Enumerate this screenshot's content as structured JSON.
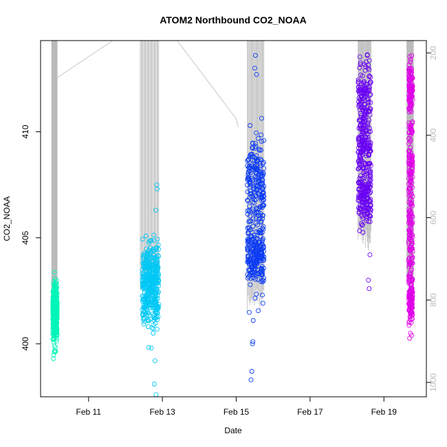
{
  "chart_data": {
    "type": "scatter",
    "title": "ATOM2 Northbound CO2_NOAA",
    "xlabel": "Date",
    "ylabel": "CO2_NOAA",
    "x_unit": "days since Feb 10 00:00",
    "xlim": [
      -0.3,
      10.15
    ],
    "ylim": [
      397.5,
      414.3
    ],
    "x_ticks": [
      {
        "value": 1,
        "label": "Feb 11"
      },
      {
        "value": 3,
        "label": "Feb 13"
      },
      {
        "value": 5,
        "label": "Feb 15"
      },
      {
        "value": 7,
        "label": "Feb 17"
      },
      {
        "value": 9,
        "label": "Feb 19"
      }
    ],
    "y_ticks": [
      {
        "value": 400,
        "label": "400"
      },
      {
        "value": 405,
        "label": "405"
      },
      {
        "value": 410,
        "label": "410"
      }
    ],
    "right_axis": {
      "label_color": "#bbbbbb",
      "ylim": [
        1035,
        170
      ],
      "ticks": [
        {
          "value": 200,
          "label": "200"
        },
        {
          "value": 400,
          "label": "400"
        },
        {
          "value": 600,
          "label": "600"
        },
        {
          "value": 800,
          "label": "800"
        },
        {
          "value": 1000,
          "label": "1000"
        }
      ]
    },
    "grid": false,
    "series": [
      {
        "color": "#00f5b8",
        "x_start": 0.03,
        "x_end": 0.15,
        "cluster_y": [
          [
            401.5,
            1.2
          ]
        ],
        "outliers": [
          [
            0.05,
            399.3
          ],
          [
            0.08,
            399.6
          ],
          [
            0.1,
            400.3
          ],
          [
            0.12,
            402.6
          ]
        ]
      },
      {
        "color": "#00c8f5",
        "x_start": 2.45,
        "x_end": 2.9,
        "cluster_y": [
          [
            402.2,
            1.4
          ],
          [
            403.5,
            1.3
          ]
        ],
        "outliers": [
          [
            2.78,
            398.1
          ],
          [
            2.83,
            397.6
          ],
          [
            2.8,
            399.2
          ],
          [
            2.85,
            407.5
          ],
          [
            2.86,
            407.3
          ],
          [
            2.82,
            406.3
          ],
          [
            2.7,
            399.8
          ],
          [
            2.75,
            400.5
          ]
        ]
      },
      {
        "color": "#0b3bf5",
        "x_start": 5.3,
        "x_end": 5.75,
        "cluster_y": [
          [
            405.5,
            3.0
          ],
          [
            408.0,
            2.0
          ],
          [
            404.0,
            1.2
          ]
        ],
        "outliers": [
          [
            5.4,
            398.3
          ],
          [
            5.42,
            398.7
          ],
          [
            5.44,
            400.0
          ],
          [
            5.45,
            400.1
          ],
          [
            5.46,
            401.1
          ],
          [
            5.5,
            413.0
          ],
          [
            5.52,
            413.6
          ],
          [
            5.55,
            412.7
          ]
        ]
      },
      {
        "color": "#6a00f5",
        "x_start": 8.3,
        "x_end": 8.65,
        "cluster_y": [
          [
            406.8,
            1.2
          ],
          [
            409.0,
            1.5
          ],
          [
            411.5,
            1.8
          ]
        ],
        "outliers": [
          [
            8.58,
            403.0
          ],
          [
            8.6,
            402.6
          ],
          [
            8.62,
            404.2
          ],
          [
            8.55,
            413.6
          ],
          [
            8.57,
            413.0
          ],
          [
            8.6,
            412.6
          ]
        ]
      },
      {
        "color": "#e000e8",
        "x_start": 9.67,
        "x_end": 9.78,
        "cluster_y": [
          [
            408.5,
            2.5
          ],
          [
            405.0,
            2.5
          ],
          [
            402.0,
            1.2
          ],
          [
            412.0,
            1.2
          ]
        ],
        "outliers": [
          [
            9.72,
            413.4
          ],
          [
            9.74,
            413.0
          ],
          [
            9.7,
            401.8
          ],
          [
            9.73,
            401.9
          ]
        ]
      }
    ],
    "altitude_trace": {
      "color": "#bbbbbb",
      "spikes": [
        {
          "x_start": 0.0,
          "x_end": 0.15,
          "low": 800
        },
        {
          "x_start": 2.4,
          "x_end": 2.9,
          "low": 750
        },
        {
          "x_start": 5.3,
          "x_end": 5.75,
          "low": 800
        },
        {
          "x_start": 8.3,
          "x_end": 8.65,
          "low": 650
        },
        {
          "x_start": 9.62,
          "x_end": 9.8,
          "low": 750
        }
      ],
      "path": [
        [
          0.15,
          260
        ],
        [
          1.65,
          160
        ],
        [
          3.4,
          160
        ],
        [
          5.0,
          360
        ],
        [
          5.05,
          380
        ]
      ]
    }
  }
}
